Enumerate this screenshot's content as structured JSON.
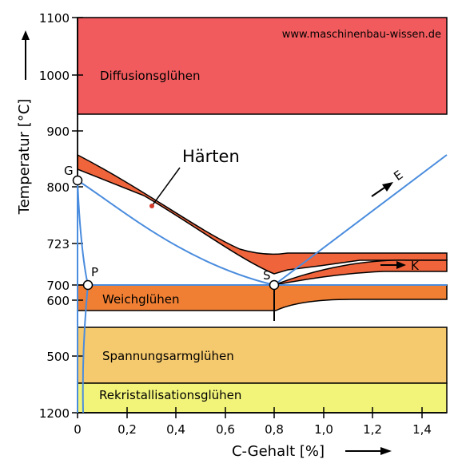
{
  "credit": "www.maschinenbau-wissen.de",
  "axes": {
    "x_label": "C-Gehalt [%]",
    "y_label": "Temperatur [°C]",
    "x_ticks": [
      {
        "value": 0.0,
        "label": "0"
      },
      {
        "value": 0.2,
        "label": "0,2"
      },
      {
        "value": 0.4,
        "label": "0,4"
      },
      {
        "value": 0.6,
        "label": "0,6"
      },
      {
        "value": 0.8,
        "label": "0,8"
      },
      {
        "value": 1.0,
        "label": "1,0"
      },
      {
        "value": 1.2,
        "label": "1,2"
      },
      {
        "value": 1.4,
        "label": "1,4"
      }
    ],
    "y_ticks": [
      {
        "value": 500,
        "label": "500"
      },
      {
        "value": 600,
        "label": "600"
      },
      {
        "value": 700,
        "label": "700"
      },
      {
        "value": 723,
        "label": "723"
      },
      {
        "value": 800,
        "label": "800"
      },
      {
        "value": 900,
        "label": "900"
      },
      {
        "value": 1000,
        "label": "1000"
      },
      {
        "value": 1100,
        "label": "1100"
      },
      {
        "value": 1200,
        "label": "1200"
      }
    ]
  },
  "regions": {
    "diffusion": {
      "label": "Diffusionsglühen",
      "color": "#f25b5e"
    },
    "haerten": {
      "label": "Härten",
      "color": "#f0643c"
    },
    "weich": {
      "label": "Weichglühen",
      "color": "#f07f33"
    },
    "spannung": {
      "label": "Spannungsarmglühen",
      "color": "#f5c96d"
    },
    "rekrist": {
      "label": "Rekristallisationsglühen",
      "color": "#f2f47a"
    }
  },
  "points": {
    "G": "G",
    "P": "P",
    "S": "S",
    "E": "E",
    "K": "K"
  },
  "colors": {
    "phase_line": "#4a8cde",
    "outline": "#000000"
  }
}
